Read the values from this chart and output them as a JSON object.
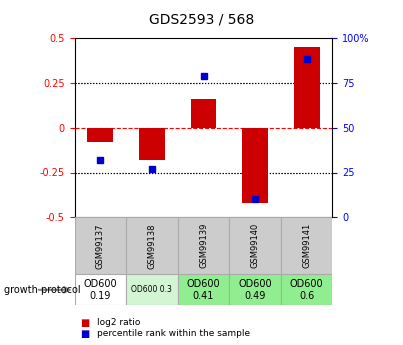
{
  "title": "GDS2593 / 568",
  "samples": [
    "GSM99137",
    "GSM99138",
    "GSM99139",
    "GSM99140",
    "GSM99141"
  ],
  "log2_ratio": [
    -0.08,
    -0.18,
    0.16,
    -0.42,
    0.45
  ],
  "percentile_rank": [
    32,
    27,
    79,
    10,
    88
  ],
  "protocol_labels": [
    "OD600\n0.19",
    "OD600 0.3",
    "OD600\n0.41",
    "OD600\n0.49",
    "OD600\n0.6"
  ],
  "protocol_bg": [
    "#ffffff",
    "#d4f5d4",
    "#90ee90",
    "#90ee90",
    "#90ee90"
  ],
  "protocol_fontsize": [
    7,
    5.5,
    7,
    7,
    7
  ],
  "bar_color_red": "#cc0000",
  "bar_color_blue": "#0000cc",
  "ylim_left": [
    -0.5,
    0.5
  ],
  "ylim_right": [
    0,
    100
  ],
  "yticks_left": [
    -0.5,
    -0.25,
    0.0,
    0.25,
    0.5
  ],
  "yticks_right": [
    0,
    25,
    50,
    75,
    100
  ],
  "background_color": "#ffffff",
  "legend_items": [
    "log2 ratio",
    "percentile rank within the sample"
  ]
}
